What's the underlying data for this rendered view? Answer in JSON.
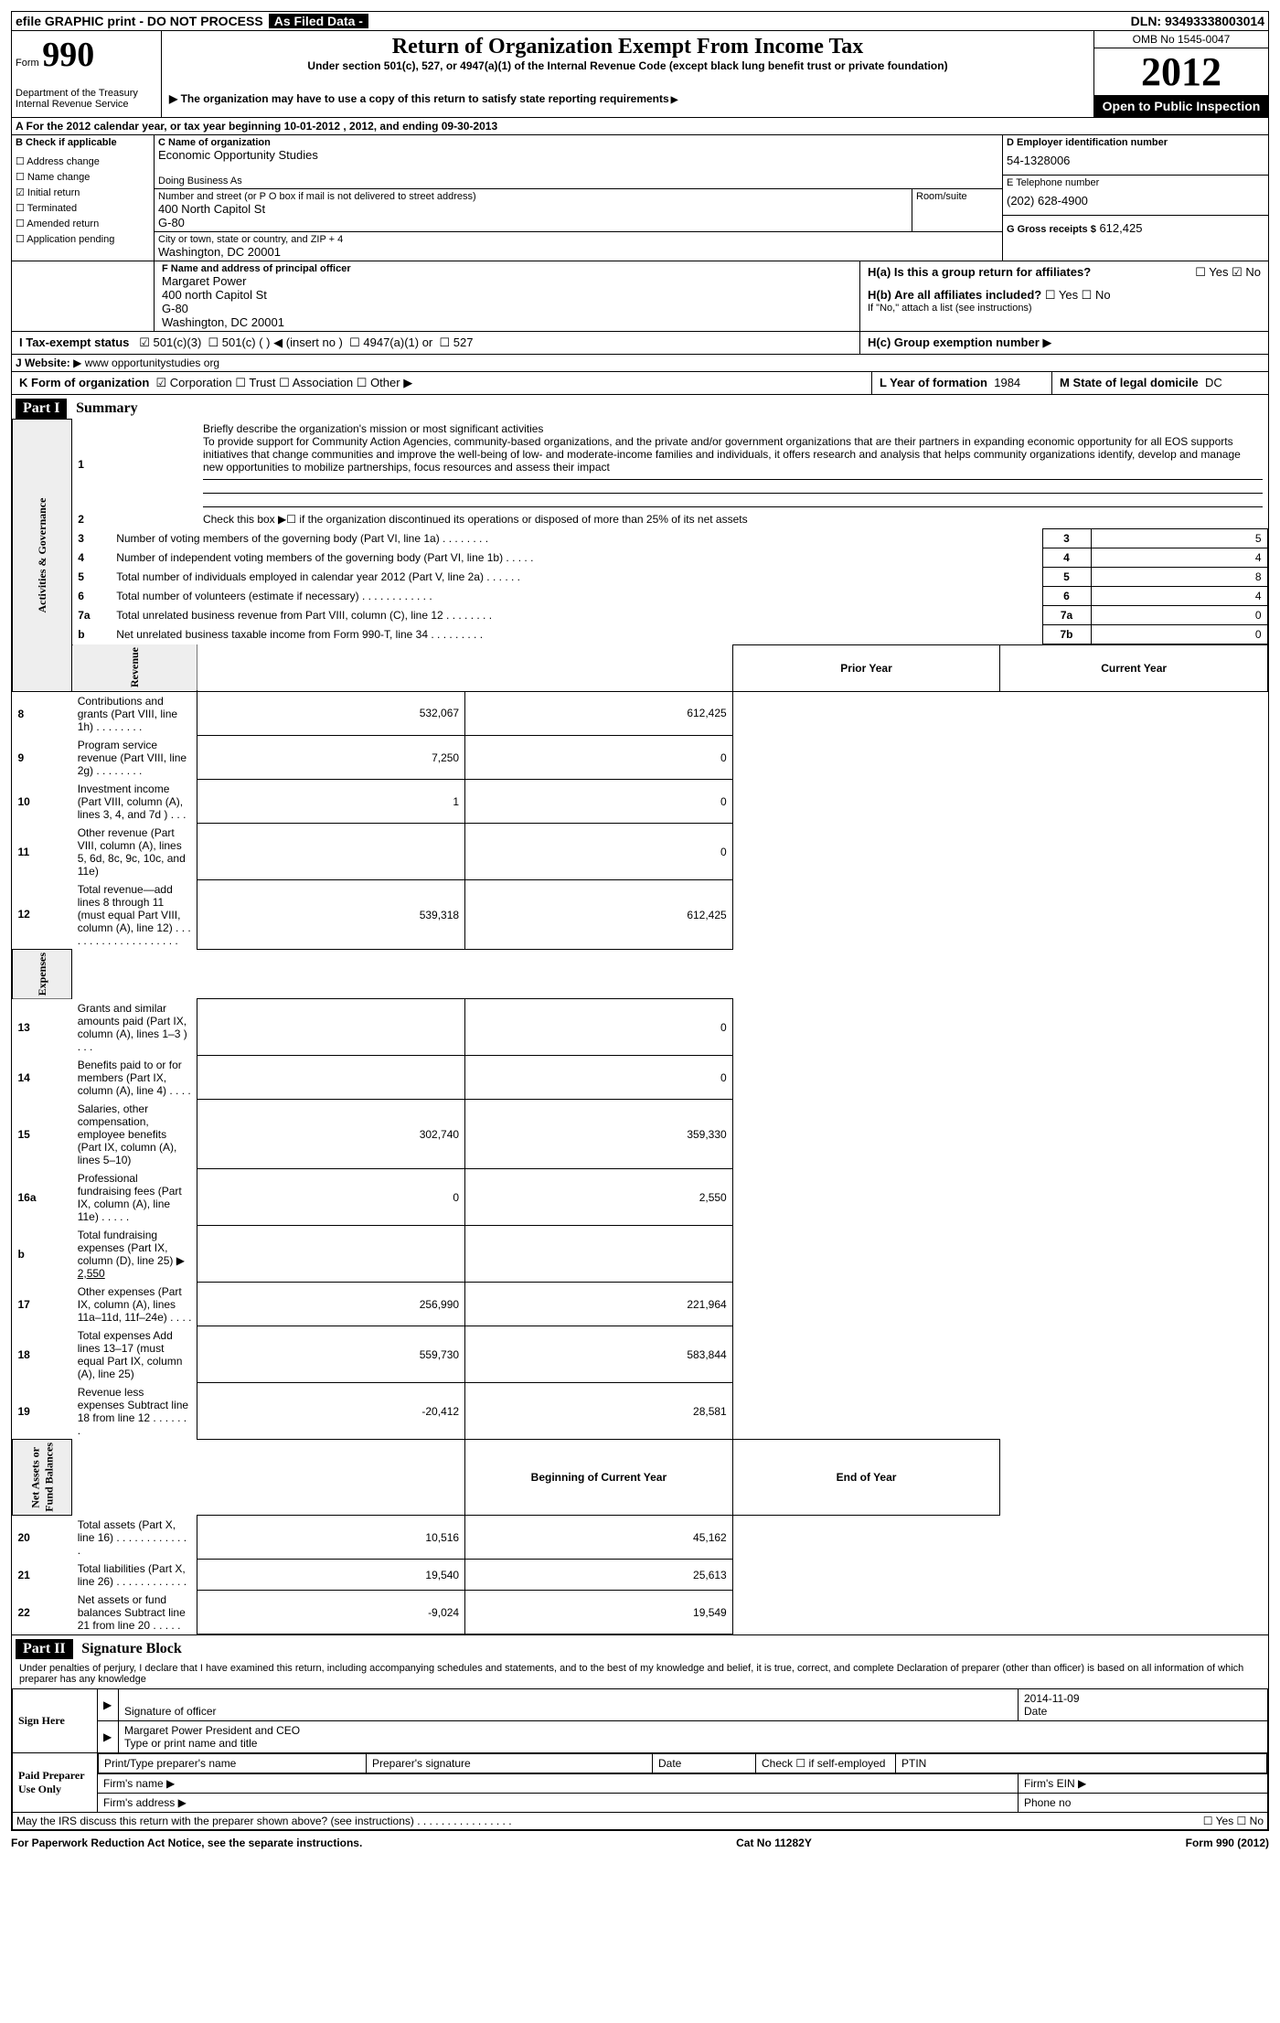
{
  "topbar": {
    "efile": "efile GRAPHIC print - DO NOT PROCESS",
    "asfiled": "As Filed Data -",
    "dln_label": "DLN:",
    "dln": "93493338003014"
  },
  "header": {
    "form_label": "Form",
    "form_no": "990",
    "dept": "Department of the Treasury\nInternal Revenue Service",
    "title": "Return of Organization Exempt From Income Tax",
    "sub1": "Under section 501(c), 527, or 4947(a)(1) of the Internal Revenue Code (except black lung benefit trust or private foundation)",
    "sub2": "The organization may have to use a copy of this return to satisfy state reporting requirements",
    "omb": "OMB No 1545-0047",
    "year": "2012",
    "open": "Open to Public Inspection"
  },
  "lineA": "A  For the 2012 calendar year, or tax year beginning 10-01-2012    , 2012, and ending 09-30-2013",
  "B": {
    "hdr": "B  Check if applicable",
    "items": [
      {
        "label": "Address change",
        "checked": false
      },
      {
        "label": "Name change",
        "checked": false
      },
      {
        "label": "Initial return",
        "checked": true
      },
      {
        "label": "Terminated",
        "checked": false
      },
      {
        "label": "Amended return",
        "checked": false
      },
      {
        "label": "Application pending",
        "checked": false
      }
    ]
  },
  "C": {
    "name_lbl": "C Name of organization",
    "name": "Economic Opportunity Studies",
    "dba_lbl": "Doing Business As",
    "dba": "",
    "addr_lbl": "Number and street (or P O  box if mail is not delivered to street address)",
    "addr": "400 North Capitol St\nG-80",
    "room_lbl": "Room/suite",
    "city_lbl": "City or town, state or country, and ZIP + 4",
    "city": "Washington, DC  20001"
  },
  "right": {
    "D_lbl": "D  Employer identification number",
    "D": "54-1328006",
    "E_lbl": "E Telephone number",
    "E": "(202) 628-4900",
    "G_lbl": "G Gross receipts $",
    "G": "612,425"
  },
  "F": {
    "lbl": "F  Name and address of principal officer",
    "name": "Margaret Power",
    "addr": "400 north Capitol St\nG-80\nWashington, DC  20001"
  },
  "H": {
    "a": "H(a)  Is this a group return for affiliates?",
    "a_yes": "Yes",
    "a_no": "No",
    "b": "H(b)  Are all affiliates included?",
    "b_note": "If \"No,\" attach a list  (see instructions)",
    "c": "H(c)   Group exemption number"
  },
  "I": {
    "lbl": "I   Tax-exempt status",
    "options": [
      "501(c)(3)",
      "501(c) (   )",
      "(insert no )",
      "4947(a)(1) or",
      "527"
    ]
  },
  "J": {
    "lbl": "J  Website:",
    "val": "www opportunitystudies org"
  },
  "K": {
    "lbl": "K Form of organization",
    "opts": [
      "Corporation",
      "Trust",
      "Association",
      "Other"
    ]
  },
  "L": {
    "lbl": "L Year of formation",
    "val": "1984"
  },
  "M": {
    "lbl": "M State of legal domicile",
    "val": "DC"
  },
  "part1": {
    "hdr": "Part I",
    "title": "Summary",
    "q1": "Briefly describe the organization's mission or most significant activities",
    "mission": "To provide support for Community Action Agencies, community-based organizations, and the private and/or government organizations that are their partners in expanding economic opportunity for all EOS supports initiatives that change communities and improve the well-being of low- and moderate-income families and individuals, it offers research and analysis that helps community organizations identify, develop and manage new opportunities to mobilize partnerships, focus resources and assess their impact",
    "q2": "Check this box ▶☐ if the organization discontinued its operations or disposed of more than 25% of its net assets",
    "rows_simple": [
      {
        "n": "3",
        "t": "Number of voting members of the governing body (Part VI, line 1a)  .  .  .  .  .  .  .  .",
        "box": "3",
        "v": "5"
      },
      {
        "n": "4",
        "t": "Number of independent voting members of the governing body (Part VI, line 1b)  .  .  .  .  .",
        "box": "4",
        "v": "4"
      },
      {
        "n": "5",
        "t": "Total number of individuals employed in calendar year 2012 (Part V, line 2a)  .  .  .  .  .  .",
        "box": "5",
        "v": "8"
      },
      {
        "n": "6",
        "t": "Total number of volunteers (estimate if necessary)  .  .  .  .  .  .  .  .  .  .  .  .",
        "box": "6",
        "v": "4"
      },
      {
        "n": "7a",
        "t": "Total unrelated business revenue from Part VIII, column (C), line 12  .  .  .  .  .  .  .  .",
        "box": "7a",
        "v": "0"
      },
      {
        "n": "b",
        "t": "Net unrelated business taxable income from Form 990-T, line 34  .  .  .  .  .  .  .  .  .",
        "box": "7b",
        "v": "0"
      }
    ],
    "col_prior": "Prior Year",
    "col_curr": "Current Year",
    "revenue": [
      {
        "n": "8",
        "t": "Contributions and grants (Part VIII, line 1h)  .  .  .  .  .  .  .  .",
        "p": "532,067",
        "c": "612,425"
      },
      {
        "n": "9",
        "t": "Program service revenue (Part VIII, line 2g)  .  .  .  .  .  .  .  .",
        "p": "7,250",
        "c": "0"
      },
      {
        "n": "10",
        "t": "Investment income (Part VIII, column (A), lines 3, 4, and 7d )  .  .  .",
        "p": "1",
        "c": "0"
      },
      {
        "n": "11",
        "t": "Other revenue (Part VIII, column (A), lines 5, 6d, 8c, 9c, 10c, and 11e)",
        "p": "",
        "c": "0"
      },
      {
        "n": "12",
        "t": "Total revenue—add lines 8 through 11 (must equal Part VIII, column (A), line 12)  .  .  .  .  .  .  .  .  .  .  .  .  .  .  .  .  .  .  .  .",
        "p": "539,318",
        "c": "612,425"
      }
    ],
    "expenses": [
      {
        "n": "13",
        "t": "Grants and similar amounts paid (Part IX, column (A), lines 1–3 )  .  .  .",
        "p": "",
        "c": "0"
      },
      {
        "n": "14",
        "t": "Benefits paid to or for members (Part IX, column (A), line 4)  .  .  .  .",
        "p": "",
        "c": "0"
      },
      {
        "n": "15",
        "t": "Salaries, other compensation, employee benefits (Part IX, column (A), lines 5–10)",
        "p": "302,740",
        "c": "359,330"
      },
      {
        "n": "16a",
        "t": "Professional fundraising fees (Part IX, column (A), line 11e)  .  .  .  .  .",
        "p": "0",
        "c": "2,550"
      },
      {
        "n": "b",
        "t": "Total fundraising expenses (Part IX, column (D), line 25) ▶",
        "p": "",
        "c": "",
        "inline": "2,550"
      },
      {
        "n": "17",
        "t": "Other expenses (Part IX, column (A), lines 11a–11d, 11f–24e)  .  .  .  .",
        "p": "256,990",
        "c": "221,964"
      },
      {
        "n": "18",
        "t": "Total expenses  Add lines 13–17 (must equal Part IX, column (A), line 25)",
        "p": "559,730",
        "c": "583,844"
      },
      {
        "n": "19",
        "t": "Revenue less expenses  Subtract line 18 from line 12  .  .  .  .  .  .  .",
        "p": "-20,412",
        "c": "28,581"
      }
    ],
    "col_beg": "Beginning of Current Year",
    "col_end": "End of Year",
    "netassets": [
      {
        "n": "20",
        "t": "Total assets (Part X, line 16)  .  .  .  .  .  .  .  .  .  .  .  .  .",
        "p": "10,516",
        "c": "45,162"
      },
      {
        "n": "21",
        "t": "Total liabilities (Part X, line 26)  .  .  .  .  .  .  .  .  .  .  .  .",
        "p": "19,540",
        "c": "25,613"
      },
      {
        "n": "22",
        "t": "Net assets or fund balances  Subtract line 21 from line 20  .  .  .  .  .",
        "p": "-9,024",
        "c": "19,549"
      }
    ],
    "side_labels": {
      "gov": "Activities & Governance",
      "rev": "Revenue",
      "exp": "Expenses",
      "net": "Net Assets or\nFund Balances"
    }
  },
  "part2": {
    "hdr": "Part II",
    "title": "Signature Block",
    "perjury": "Under penalties of perjury, I declare that I have examined this return, including accompanying schedules and statements, and to the best of my knowledge and belief, it is true, correct, and complete  Declaration of preparer (other than officer) is based on all information of which preparer has any knowledge",
    "sign_here": "Sign Here",
    "sig_officer": "Signature of officer",
    "date_lbl": "Date",
    "date": "2014-11-09",
    "officer": "Margaret Power President and CEO",
    "type_lbl": "Type or print name and title",
    "paid": "Paid Preparer Use Only",
    "prep_name": "Print/Type preparer's name",
    "prep_sig": "Preparer's signature",
    "check_self": "Check ☐ if self-employed",
    "ptin": "PTIN",
    "firm_name": "Firm's name  ▶",
    "firm_ein": "Firm's EIN ▶",
    "firm_addr": "Firm's address ▶",
    "phone": "Phone no",
    "discuss": "May the IRS discuss this return with the preparer shown above? (see instructions)  .  .  .  .  .  .  .  .  .  .  .  .  .  .  .  .",
    "yes": "Yes",
    "no": "No"
  },
  "footer": {
    "paperwork": "For Paperwork Reduction Act Notice, see the separate instructions.",
    "cat": "Cat No  11282Y",
    "form": "Form 990 (2012)"
  }
}
